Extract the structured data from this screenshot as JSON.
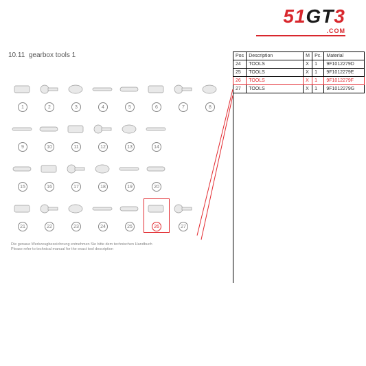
{
  "logo": {
    "prefix": "51",
    "mid": "GT",
    "suffix": "3",
    "sub": ".COM"
  },
  "section": {
    "number": "10.11",
    "title": "gearbox tools 1"
  },
  "footnote": {
    "de": "Die genaue Werkzeugbezeichnung entnehmen Sie bitte dem technischen Handbuch",
    "en": "Please refer to technical manual for the exact tool description"
  },
  "diagram": {
    "rows": 4,
    "cols": 8,
    "items": [
      1,
      2,
      3,
      4,
      5,
      6,
      7,
      8,
      9,
      10,
      11,
      12,
      13,
      14,
      15,
      16,
      17,
      18,
      19,
      20,
      21,
      22,
      23,
      24,
      25,
      26,
      27
    ],
    "highlight": 26,
    "item_stroke": "#9c9c9c",
    "item_fill": "#e9e9e9",
    "highlight_color": "#e2282e"
  },
  "table": {
    "headers": {
      "pos": "Pos",
      "desc": "Description",
      "m": "M",
      "pc": "Pc.",
      "mat": "Material"
    },
    "rows": [
      {
        "pos": "24",
        "desc": "TOOLS",
        "m": "X",
        "pc": "1",
        "mat": "9F1012279D"
      },
      {
        "pos": "25",
        "desc": "TOOLS",
        "m": "X",
        "pc": "1",
        "mat": "9F1012279E"
      },
      {
        "pos": "26",
        "desc": "TOOLS",
        "m": "X",
        "pc": "1",
        "mat": "9F1012279F",
        "hl": true
      },
      {
        "pos": "27",
        "desc": "TOOLS",
        "m": "X",
        "pc": "1",
        "mat": "9F1012279G"
      }
    ],
    "header_bg": "#ffffff",
    "border_color": "#000000",
    "highlight_color": "#e2282e",
    "fontsize": 7
  },
  "callout": {
    "color": "#e2282e",
    "width": 1
  },
  "background_color": "#ffffff"
}
